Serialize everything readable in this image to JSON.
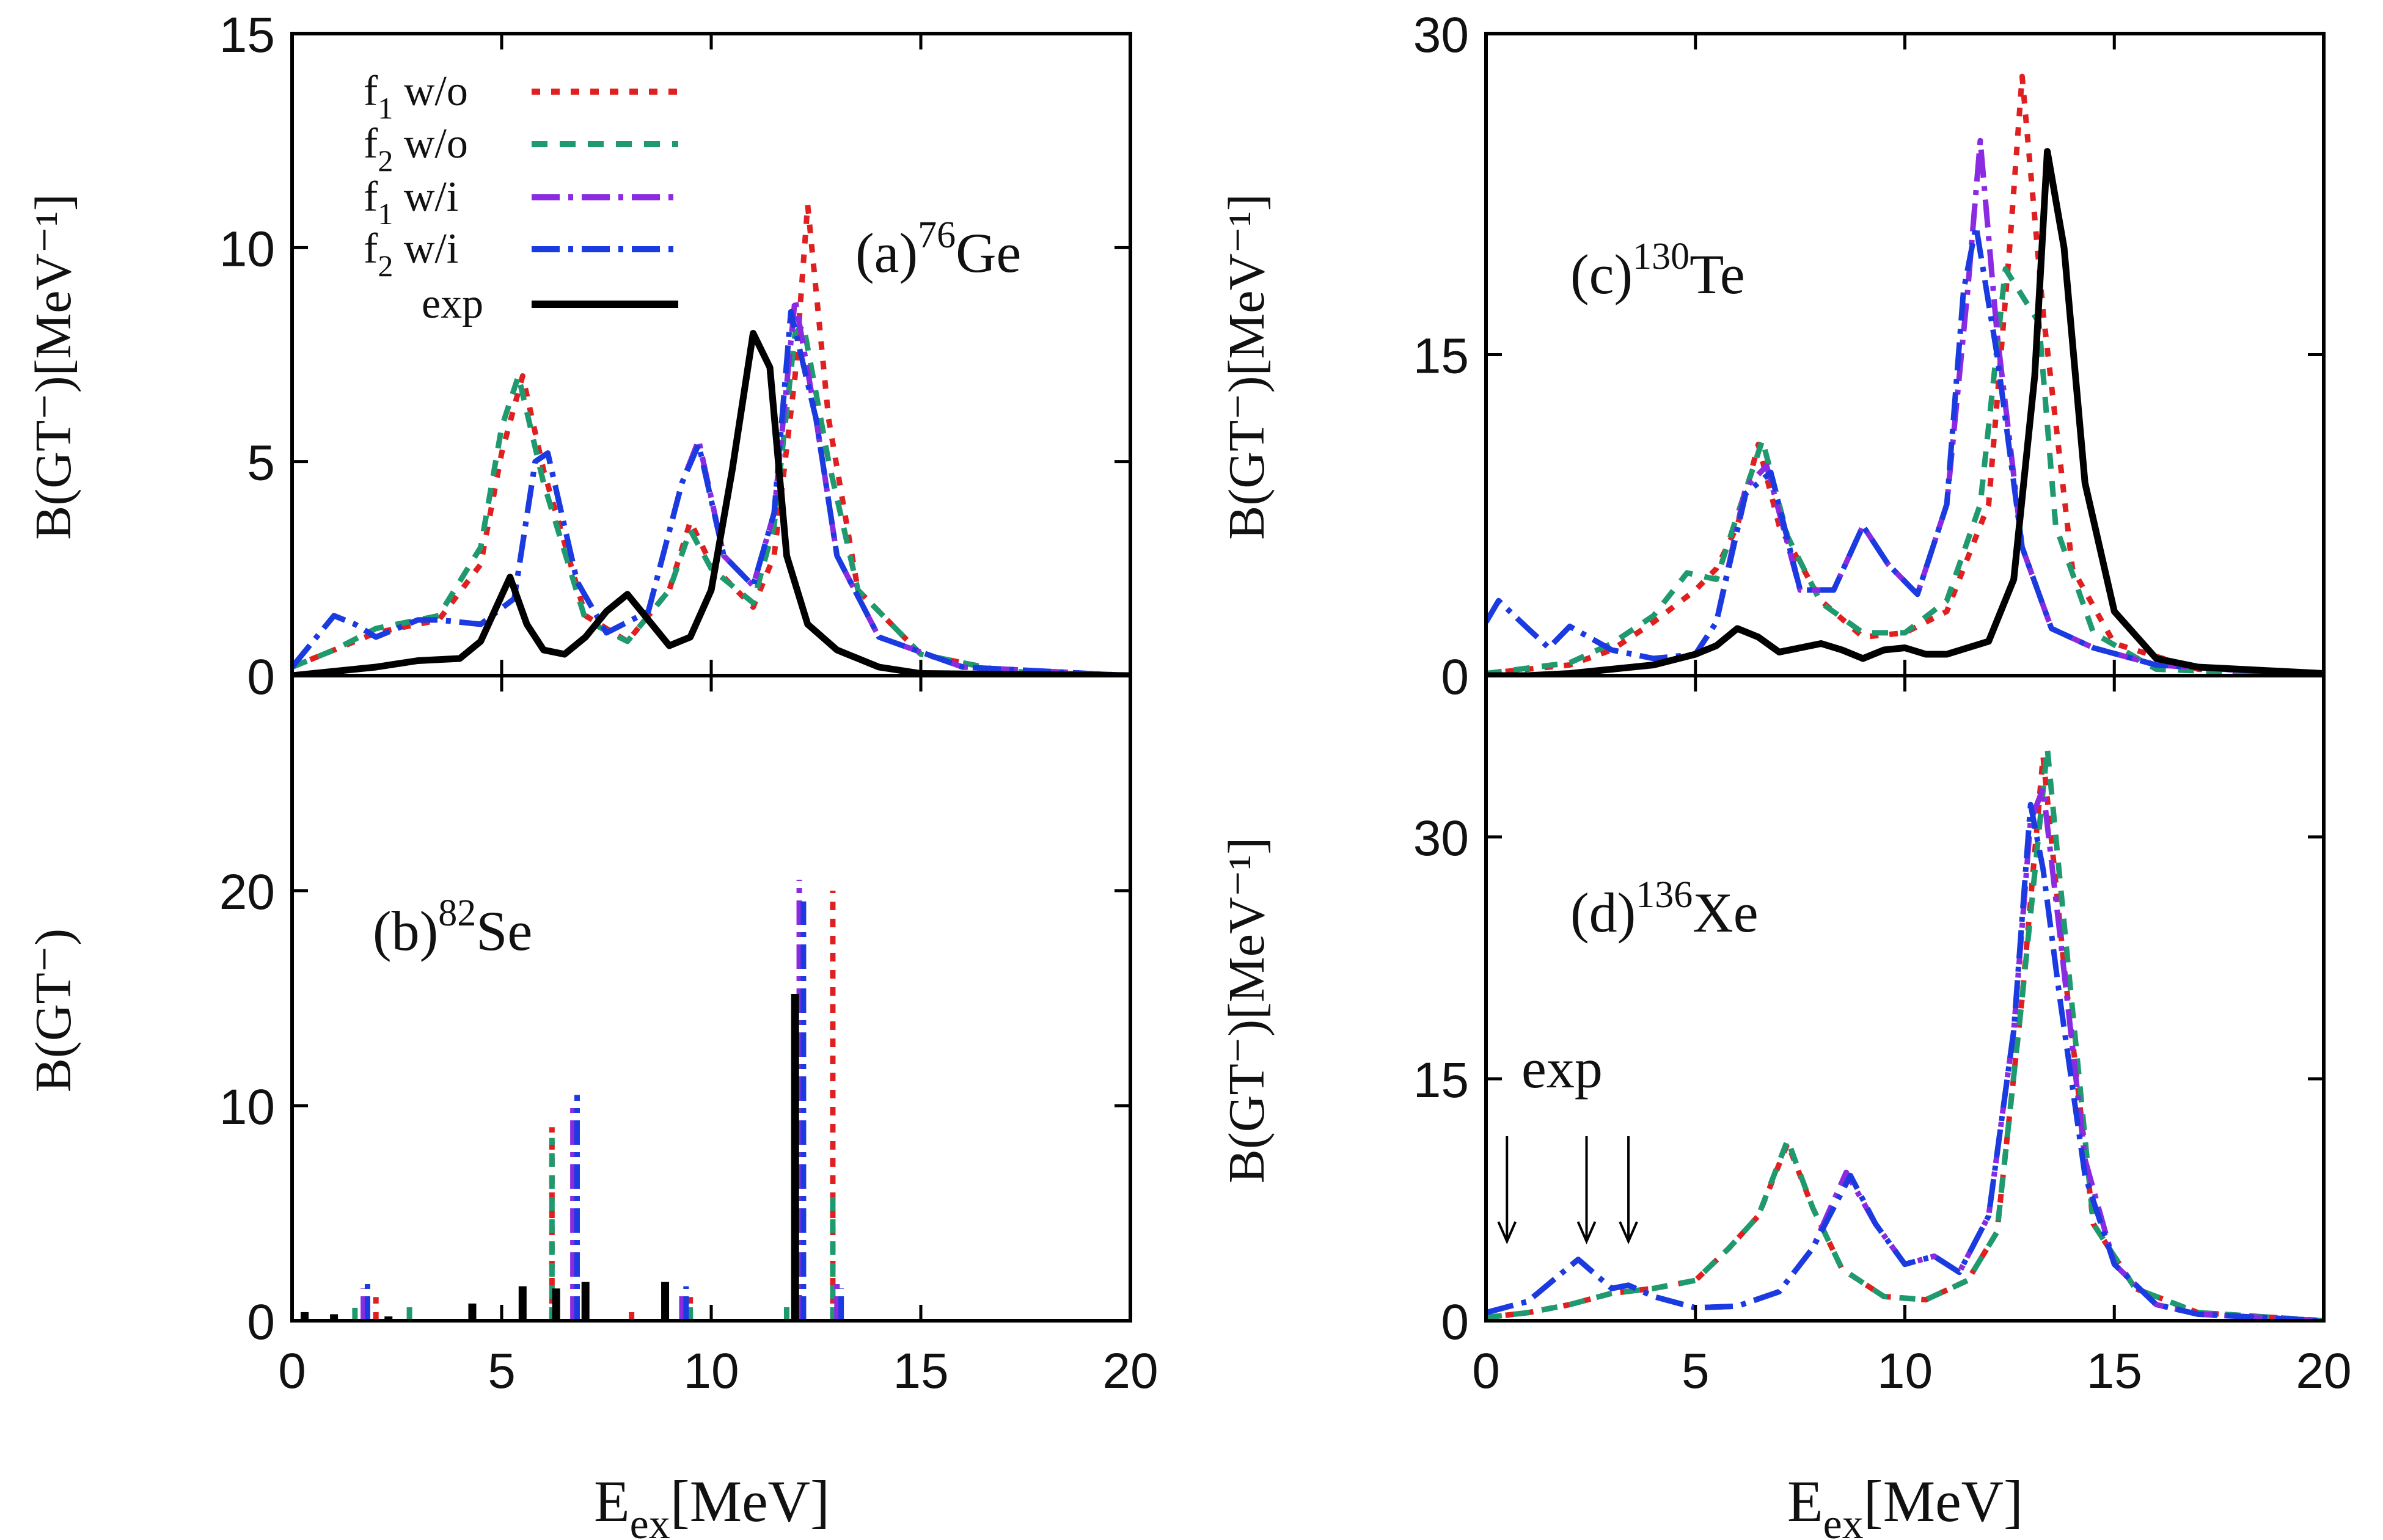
{
  "colors": {
    "f1_wo": "#e02020",
    "f2_wo": "#1f9a6e",
    "f1_wi": "#8a2be2",
    "f2_wi": "#1a3be0",
    "exp": "#000000"
  },
  "legend": {
    "items": [
      {
        "key": "f1_wo",
        "main": "f",
        "sub": "1",
        "suffix": " w/o",
        "dash": "dot"
      },
      {
        "key": "f2_wo",
        "main": "f",
        "sub": "2",
        "suffix": " w/o",
        "dash": "dash"
      },
      {
        "key": "f1_wi",
        "main": "f",
        "sub": "1",
        "suffix": "  w/i",
        "dash": "dashdot"
      },
      {
        "key": "f2_wi",
        "main": "f",
        "sub": "2",
        "suffix": "  w/i",
        "dash": "dashdot2"
      },
      {
        "key": "exp",
        "main": "exp",
        "sub": "",
        "suffix": "",
        "dash": "solid"
      }
    ]
  },
  "xlabel_main": "E",
  "xlabel_sub": "ex",
  "xlabel_unit": "[MeV]",
  "chart_data": [
    {
      "id": "a",
      "type": "line",
      "label_prefix": "(a)",
      "label_mass": "76",
      "label_element": "Ge",
      "ylabel": "B(GT⁻)[MeV⁻¹]",
      "xlim": [
        0,
        20
      ],
      "ylim": [
        0,
        15
      ],
      "xticks": [
        0,
        5,
        10,
        15,
        20
      ],
      "yticks": [
        0,
        5,
        10,
        15
      ],
      "series": [
        {
          "key": "f1_wo",
          "x": [
            0,
            1,
            2,
            3,
            3.5,
            4.5,
            5,
            5.5,
            6,
            7,
            8,
            9,
            9.5,
            10,
            11,
            11.5,
            12,
            12.3,
            12.8,
            13.5,
            15,
            17,
            20
          ],
          "y": [
            0.2,
            0.6,
            1.0,
            1.2,
            1.3,
            2.6,
            5.2,
            7.0,
            4.8,
            1.4,
            0.8,
            2.0,
            3.6,
            2.6,
            1.6,
            2.8,
            7.0,
            11.0,
            6.0,
            2.0,
            0.5,
            0.1,
            0.0
          ]
        },
        {
          "key": "f2_wo",
          "x": [
            0,
            1,
            2,
            3,
            3.5,
            4.5,
            5,
            5.4,
            6,
            7,
            8,
            9,
            9.5,
            10,
            11,
            11.5,
            12,
            12.2,
            12.8,
            13.5,
            15,
            17,
            20
          ],
          "y": [
            0.2,
            0.6,
            1.1,
            1.3,
            1.4,
            3.0,
            5.8,
            7.0,
            4.5,
            1.3,
            0.8,
            2.0,
            3.4,
            2.5,
            1.7,
            3.5,
            8.0,
            8.2,
            5.0,
            2.0,
            0.5,
            0.1,
            0.0
          ]
        },
        {
          "key": "f1_wi",
          "x": [
            0,
            0.5,
            1,
            1.5,
            2,
            3,
            3.5,
            4.5,
            5.3,
            5.8,
            6.1,
            6.8,
            7.5,
            8.5,
            9.3,
            9.7,
            10.3,
            11,
            11.5,
            12,
            12.5,
            13,
            14,
            16,
            20
          ],
          "y": [
            0.2,
            0.8,
            1.4,
            1.2,
            0.9,
            1.3,
            1.3,
            1.2,
            1.8,
            5.0,
            5.2,
            2.2,
            1.0,
            1.5,
            4.5,
            5.5,
            2.8,
            2.1,
            3.8,
            8.8,
            6.0,
            2.8,
            0.9,
            0.2,
            0.0
          ]
        },
        {
          "key": "f2_wi",
          "x": [
            0,
            0.5,
            1,
            1.5,
            2,
            3,
            3.5,
            4.5,
            5.3,
            5.8,
            6.1,
            6.8,
            7.5,
            8.5,
            9.3,
            9.7,
            10.3,
            11,
            11.5,
            11.9,
            12.5,
            13,
            14,
            16,
            20
          ],
          "y": [
            0.2,
            0.8,
            1.4,
            1.2,
            0.9,
            1.3,
            1.3,
            1.2,
            1.8,
            5.0,
            5.2,
            2.2,
            1.0,
            1.5,
            4.5,
            5.4,
            2.8,
            2.1,
            3.8,
            8.5,
            6.0,
            2.8,
            0.9,
            0.2,
            0.0
          ]
        },
        {
          "key": "exp",
          "x": [
            0,
            1,
            2,
            3,
            4,
            4.5,
            5.2,
            5.6,
            6,
            6.5,
            7,
            7.5,
            8,
            8.5,
            9,
            9.5,
            10,
            10.5,
            11,
            11.4,
            11.8,
            12.3,
            13,
            14,
            15,
            20
          ],
          "y": [
            0.0,
            0.1,
            0.2,
            0.35,
            0.4,
            0.8,
            2.3,
            1.2,
            0.6,
            0.5,
            0.9,
            1.5,
            1.9,
            1.3,
            0.7,
            0.9,
            2.0,
            4.8,
            8.0,
            7.2,
            2.8,
            1.2,
            0.6,
            0.2,
            0.05,
            0.0
          ]
        }
      ]
    },
    {
      "id": "b",
      "type": "bar",
      "label_prefix": "(b)",
      "label_mass": "82",
      "label_element": "Se",
      "ylabel": "B(GT⁻)",
      "xlim": [
        0,
        20
      ],
      "ylim": [
        0,
        30
      ],
      "xticks": [
        0,
        5,
        10,
        15,
        20
      ],
      "yticks": [
        0,
        10,
        20
      ],
      "series": [
        {
          "key": "f1_wo",
          "x": [
            2.0,
            6.2,
            8.1,
            9.5,
            12.1,
            12.9
          ],
          "y": [
            1.1,
            9.0,
            0.4,
            1.1,
            1.5,
            20.0
          ]
        },
        {
          "key": "f2_wo",
          "x": [
            1.5,
            2.8,
            6.2,
            9.5,
            11.8,
            12.9
          ],
          "y": [
            0.6,
            0.7,
            8.5,
            0.8,
            1.0,
            6.0
          ]
        },
        {
          "key": "f1_wi",
          "x": [
            1.7,
            6.7,
            9.3,
            12.1,
            13.0
          ],
          "y": [
            1.5,
            10.2,
            1.3,
            20.5,
            1.8
          ]
        },
        {
          "key": "f2_wi",
          "x": [
            1.8,
            6.8,
            9.4,
            12.2,
            13.1
          ],
          "y": [
            2.0,
            10.5,
            1.6,
            19.5,
            1.5
          ]
        },
        {
          "key": "exp",
          "x": [
            0.3,
            1.0,
            2.3,
            4.3,
            5.5,
            6.3,
            7.0,
            8.9,
            12.0
          ],
          "y": [
            0.4,
            0.3,
            0.2,
            0.8,
            1.6,
            1.5,
            1.8,
            1.8,
            15.2
          ]
        }
      ]
    },
    {
      "id": "c",
      "type": "line",
      "label_prefix": "(c)",
      "label_mass": "130",
      "label_element": "Te",
      "ylabel": "B(GT⁻)[MeV⁻¹]",
      "xlim": [
        0,
        20
      ],
      "ylim": [
        0,
        30
      ],
      "xticks": [
        0,
        5,
        10,
        15,
        20
      ],
      "yticks": [
        0,
        15,
        30
      ],
      "series": [
        {
          "key": "f1_wo",
          "x": [
            0,
            2,
            3,
            4,
            5,
            5.5,
            6,
            6.5,
            7,
            8,
            9,
            10,
            11,
            12,
            12.5,
            12.8,
            13.3,
            14,
            15,
            17,
            20
          ],
          "y": [
            0.1,
            0.5,
            1.2,
            2.5,
            4.0,
            5.0,
            7.0,
            10.8,
            7.0,
            3.5,
            1.8,
            2.0,
            3.0,
            8.0,
            20.0,
            28.0,
            17.0,
            5.0,
            1.5,
            0.3,
            0.0
          ]
        },
        {
          "key": "f2_wo",
          "x": [
            0,
            2,
            3,
            4,
            4.8,
            5.5,
            6,
            6.6,
            7.2,
            8,
            9,
            10,
            11,
            11.8,
            12.4,
            13.2,
            13.6,
            14.5,
            16,
            20
          ],
          "y": [
            0.1,
            0.6,
            1.5,
            2.8,
            4.8,
            4.5,
            7.5,
            11.0,
            6.5,
            3.4,
            2.0,
            2.0,
            3.5,
            8.0,
            19.0,
            16.5,
            7.0,
            2.0,
            0.3,
            0.0
          ]
        },
        {
          "key": "f1_wi",
          "x": [
            0,
            0.3,
            1,
            1.5,
            2,
            3,
            4,
            5,
            5.5,
            6.2,
            6.7,
            7.5,
            8.3,
            9,
            9.6,
            10.3,
            11,
            11.5,
            11.8,
            12.2,
            12.8,
            13.5,
            14.5,
            16,
            20
          ],
          "y": [
            2.5,
            3.5,
            2.2,
            1.3,
            2.3,
            1.2,
            0.8,
            1.0,
            2.5,
            8.8,
            9.8,
            4.0,
            4.0,
            7.0,
            5.2,
            3.8,
            8.0,
            18.0,
            25.0,
            16.0,
            6.0,
            2.2,
            1.3,
            0.5,
            0.0
          ]
        },
        {
          "key": "f2_wi",
          "x": [
            0,
            0.3,
            1,
            1.5,
            2,
            3,
            4,
            5,
            5.5,
            6.2,
            6.8,
            7.5,
            8.3,
            9,
            9.6,
            10.3,
            11,
            11.4,
            11.7,
            12.2,
            12.8,
            13.5,
            14.5,
            16,
            20
          ],
          "y": [
            2.5,
            3.5,
            2.2,
            1.3,
            2.3,
            1.2,
            0.8,
            1.0,
            2.5,
            8.5,
            9.5,
            4.0,
            4.0,
            7.0,
            5.2,
            3.8,
            8.0,
            18.0,
            21.0,
            15.0,
            6.0,
            2.2,
            1.3,
            0.5,
            0.0
          ]
        },
        {
          "key": "exp",
          "x": [
            0,
            1,
            2,
            3,
            4,
            5,
            5.5,
            6,
            6.5,
            7,
            7.5,
            8,
            8.5,
            9,
            9.5,
            10,
            10.5,
            11,
            12,
            12.6,
            13.1,
            13.4,
            13.8,
            14.3,
            15,
            16,
            17,
            18,
            20
          ],
          "y": [
            0.0,
            0.0,
            0.1,
            0.3,
            0.5,
            1.0,
            1.4,
            2.2,
            1.8,
            1.1,
            1.3,
            1.5,
            1.2,
            0.8,
            1.2,
            1.3,
            1.0,
            1.0,
            1.6,
            4.5,
            14.0,
            24.5,
            20.0,
            9.0,
            3.0,
            0.8,
            0.4,
            0.3,
            0.1
          ]
        }
      ]
    },
    {
      "id": "d",
      "type": "line",
      "label_prefix": "(d)",
      "label_mass": "136",
      "label_element": "Xe",
      "ylabel": "B(GT⁻)[MeV⁻¹]",
      "xlim": [
        0,
        20
      ],
      "ylim": [
        0,
        40
      ],
      "xticks": [
        0,
        5,
        10,
        15,
        20
      ],
      "yticks": [
        0,
        15,
        30
      ],
      "annotation": {
        "text": "exp",
        "arrows_x": [
          0.5,
          2.4,
          3.4
        ]
      },
      "series": [
        {
          "key": "f1_wo",
          "x": [
            0,
            1,
            2,
            3,
            4,
            5,
            5.8,
            6.5,
            7.2,
            7.8,
            8.5,
            9.5,
            10.5,
            11.5,
            12.2,
            12.8,
            13.3,
            13.8,
            14.5,
            15.5,
            17,
            20
          ],
          "y": [
            0.2,
            0.5,
            1.0,
            1.7,
            2.0,
            2.5,
            4.5,
            6.5,
            11.0,
            7.0,
            3.2,
            1.5,
            1.3,
            2.5,
            5.5,
            20.0,
            35.0,
            22.0,
            6.0,
            2.0,
            0.5,
            0.0
          ]
        },
        {
          "key": "f2_wo",
          "x": [
            0,
            1,
            2,
            3,
            4,
            5,
            5.8,
            6.5,
            7.2,
            7.8,
            8.5,
            9.5,
            10.5,
            11.5,
            12.2,
            12.8,
            13.4,
            13.9,
            14.5,
            15.5,
            17,
            20
          ],
          "y": [
            0.2,
            0.5,
            1.0,
            1.7,
            2.0,
            2.5,
            4.5,
            6.5,
            11.2,
            7.0,
            3.2,
            1.5,
            1.3,
            2.5,
            5.5,
            20.0,
            35.5,
            22.0,
            6.0,
            2.0,
            0.5,
            0.0
          ]
        },
        {
          "key": "f1_wi",
          "x": [
            0,
            1,
            1.6,
            2.2,
            3,
            3.4,
            4,
            5,
            6,
            7,
            7.8,
            8.6,
            9.3,
            10,
            10.7,
            11.3,
            12,
            12.6,
            13.0,
            13.3,
            13.7,
            14.3,
            15,
            16,
            17,
            20
          ],
          "y": [
            0.5,
            1.2,
            2.5,
            3.8,
            2.0,
            2.2,
            1.5,
            0.8,
            0.9,
            1.8,
            4.5,
            9.2,
            6.0,
            3.5,
            4.0,
            3.0,
            6.5,
            18.0,
            31.0,
            33.0,
            24.0,
            10.0,
            3.5,
            1.0,
            0.4,
            0.0
          ]
        },
        {
          "key": "f2_wi",
          "x": [
            0,
            1,
            1.6,
            2.2,
            3,
            3.4,
            4,
            5,
            6,
            7,
            7.8,
            8.7,
            9.3,
            10,
            10.7,
            11.3,
            12,
            12.6,
            13.0,
            13.3,
            13.7,
            14.3,
            15,
            16,
            17,
            20
          ],
          "y": [
            0.5,
            1.2,
            2.5,
            3.8,
            2.0,
            2.2,
            1.5,
            0.8,
            0.9,
            1.8,
            4.5,
            9.0,
            6.0,
            3.5,
            4.0,
            3.0,
            6.5,
            18.0,
            32.0,
            28.0,
            20.0,
            9.0,
            3.5,
            1.0,
            0.4,
            0.0
          ]
        }
      ]
    }
  ]
}
